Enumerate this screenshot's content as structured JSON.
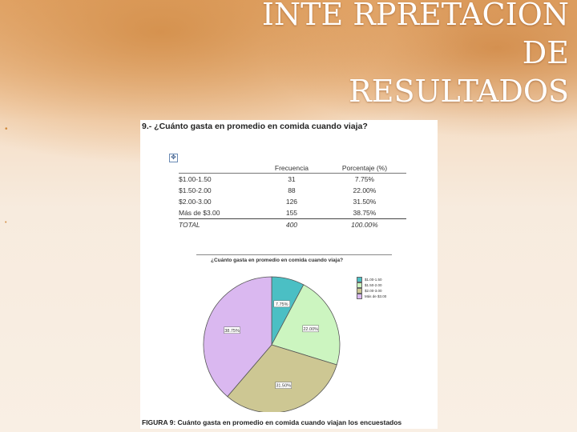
{
  "slide": {
    "title_line1": "INTE RPRETACION DE",
    "title_line2": "RESULTADOS",
    "bullet_char": "•"
  },
  "question": {
    "title": "9.- ¿Cuánto gasta en promedio en comida cuando viaja?",
    "table_headers": [
      "Frecuencia",
      "Porcentaje (%)"
    ],
    "rows": [
      {
        "label": "$1.00-1.50",
        "freq": "31",
        "pct": "7.75%"
      },
      {
        "label": "$1.50-2.00",
        "freq": "88",
        "pct": "22.00%"
      },
      {
        "label": "$2.00-3.00",
        "freq": "126",
        "pct": "31.50%"
      },
      {
        "label": "Más de $3.00",
        "freq": "155",
        "pct": "38.75%"
      }
    ],
    "total": {
      "label": "TOTAL",
      "freq": "400",
      "pct": "100.00%"
    },
    "caption": "FIGURA 9: Cuánto gasta en promedio en comida cuando viajan los encuestados"
  },
  "chart_data": {
    "type": "pie",
    "title": "¿Cuánto gasta en promedio en comida cuando viaja?",
    "categories": [
      "$1.00-1.50",
      "$1.50-2.00",
      "$2.00-3.00",
      "Más de $3.00"
    ],
    "values": [
      7.75,
      22.0,
      31.5,
      38.75
    ],
    "labels": [
      "7.75%",
      "22.00%",
      "31.50%",
      "38.75%"
    ],
    "colors": [
      "#4bbfc4",
      "#ccf5c0",
      "#cdc793",
      "#dab8f0"
    ],
    "legend_position": "right"
  }
}
